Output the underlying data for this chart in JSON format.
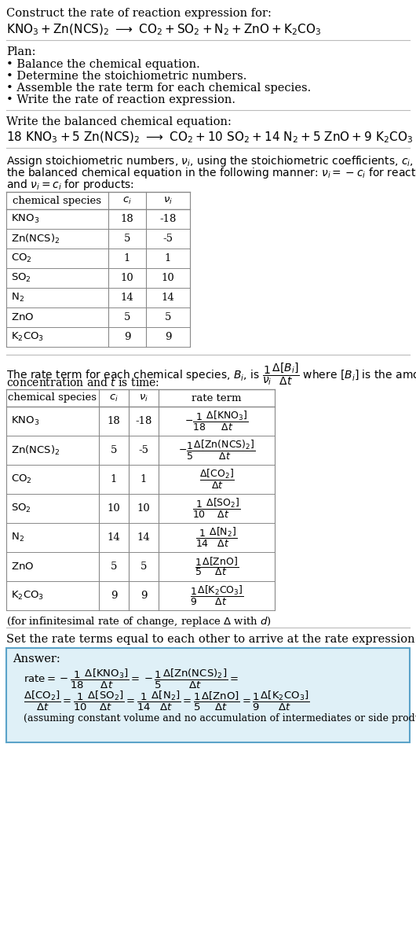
{
  "bg_color": "#ffffff",
  "answer_box_color": "#dff0f7",
  "answer_border_color": "#5ba3c9",
  "chem_formulas": {
    "KNO3": "KNO_3",
    "ZnNCS2": "Zn(NCS)_2",
    "CO2": "CO_2",
    "SO2": "SO_2",
    "N2": "N_2",
    "ZnO": "ZnO",
    "K2CO3": "K_2CO_3"
  },
  "table1_rows": [
    [
      "KNO_3",
      "18",
      "-18"
    ],
    [
      "Zn(NCS)_2",
      "5",
      "-5"
    ],
    [
      "CO_2",
      "1",
      "1"
    ],
    [
      "SO_2",
      "10",
      "10"
    ],
    [
      "N_2",
      "14",
      "14"
    ],
    [
      "ZnO",
      "5",
      "5"
    ],
    [
      "K_2CO_3",
      "9",
      "9"
    ]
  ],
  "table2_rows": [
    [
      "KNO_3",
      "18",
      "-18"
    ],
    [
      "Zn(NCS)_2",
      "5",
      "-5"
    ],
    [
      "CO_2",
      "1",
      "1"
    ],
    [
      "SO_2",
      "10",
      "10"
    ],
    [
      "N_2",
      "14",
      "14"
    ],
    [
      "ZnO",
      "5",
      "5"
    ],
    [
      "K_2CO_3",
      "9",
      "9"
    ]
  ]
}
